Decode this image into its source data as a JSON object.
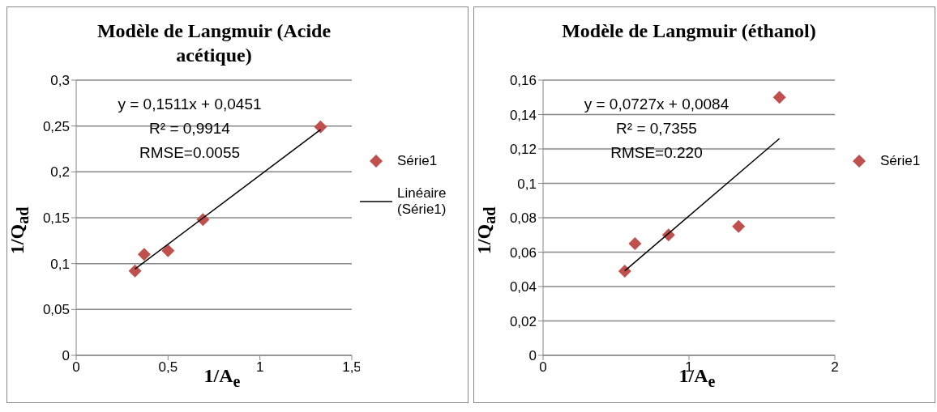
{
  "chart_data": [
    {
      "type": "scatter",
      "title": "Modèle de Langmuir (Acide acétique)",
      "xlabel": "1/A$_{e}$",
      "ylabel": "1/Q$_{ad}$",
      "xlim": [
        0,
        1.5
      ],
      "xticks": [
        0,
        {
          "value": 0.5,
          "label": "0,5"
        },
        1,
        {
          "value": 1.5,
          "label": "1,5"
        }
      ],
      "ylim": [
        0,
        0.3
      ],
      "yticks": [
        0,
        {
          "value": 0.05,
          "label": "0,05"
        },
        {
          "value": 0.1,
          "label": "0,1"
        },
        {
          "value": 0.15,
          "label": "0,15"
        },
        {
          "value": 0.2,
          "label": "0,2"
        },
        {
          "value": 0.25,
          "label": "0,25"
        },
        {
          "value": 0.3,
          "label": "0,3"
        }
      ],
      "grid": "y",
      "legend": "right",
      "annotations": [
        "y = 0,1511x + 0,0451",
        "R² = 0,9914",
        "RMSE=0.0055"
      ],
      "series": [
        {
          "name": "Série1",
          "marker": "diamond",
          "color": "#c0504d",
          "x": [
            0.32,
            0.37,
            0.5,
            0.69,
            1.33
          ],
          "values": [
            0.092,
            0.11,
            0.114,
            0.148,
            0.249
          ]
        },
        {
          "name": "Linéaire (Série1)",
          "type": "line",
          "color": "#000000",
          "x": [
            0.32,
            1.33
          ],
          "values": [
            0.094,
            0.246
          ]
        }
      ]
    },
    {
      "type": "scatter",
      "title": "Modèle de Langmuir (éthanol)",
      "xlabel": "1/A$_{e}$",
      "ylabel": "1/Q$_{ad}$",
      "xlim": [
        0,
        2
      ],
      "xticks": [
        0,
        1,
        2
      ],
      "ylim": [
        0,
        0.16
      ],
      "yticks": [
        0,
        {
          "value": 0.02,
          "label": "0,02"
        },
        {
          "value": 0.04,
          "label": "0,04"
        },
        {
          "value": 0.06,
          "label": "0,06"
        },
        {
          "value": 0.08,
          "label": "0,08"
        },
        {
          "value": 0.1,
          "label": "0,1"
        },
        {
          "value": 0.12,
          "label": "0,12"
        },
        {
          "value": 0.14,
          "label": "0,14"
        },
        {
          "value": 0.16,
          "label": "0,16"
        }
      ],
      "grid": "y",
      "legend": "right",
      "annotations": [
        "y = 0,0727x + 0,0084",
        "R² = 0,7355",
        "RMSE=0.220"
      ],
      "series": [
        {
          "name": "Série1",
          "marker": "diamond",
          "color": "#c0504d",
          "x": [
            0.56,
            0.63,
            0.86,
            1.34,
            1.62
          ],
          "values": [
            0.049,
            0.065,
            0.07,
            0.075,
            0.15
          ]
        },
        {
          "type": "line",
          "color": "#000000",
          "x": [
            0.56,
            1.62
          ],
          "values": [
            0.0491,
            0.126
          ]
        }
      ]
    }
  ]
}
